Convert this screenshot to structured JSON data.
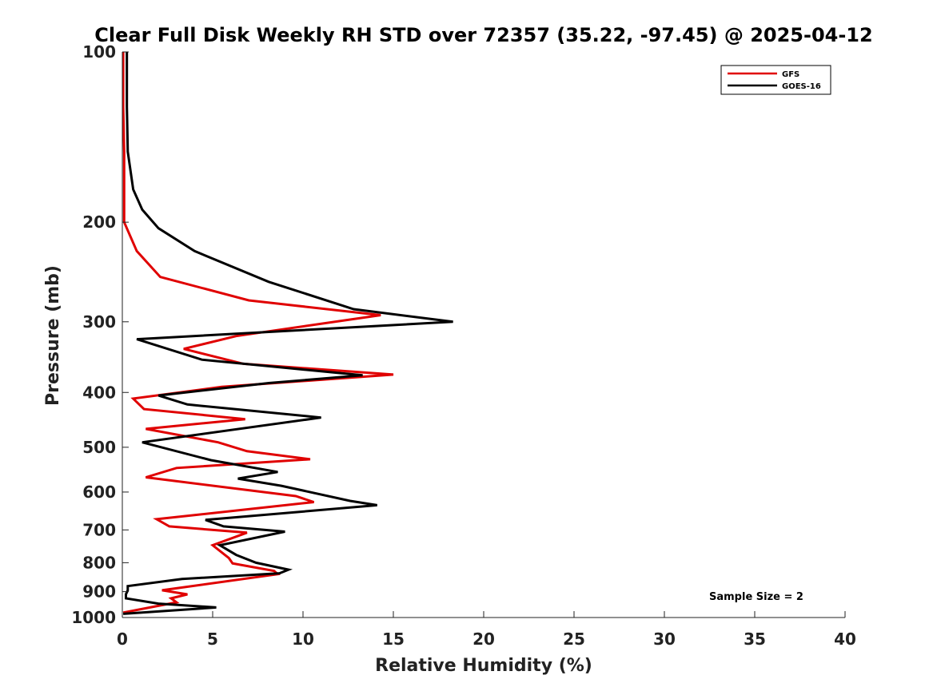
{
  "chart_data": {
    "type": "line",
    "title": "Clear Full Disk Weekly RH STD over 72357 (35.22, -97.45) @ 2025-04-12",
    "xlabel": "Relative Humidity (%)",
    "ylabel": "Pressure (mb)",
    "xlim": [
      0,
      40
    ],
    "ylim": [
      100,
      1000
    ],
    "yscale": "log",
    "yreversed": true,
    "xticks": [
      0,
      5,
      10,
      15,
      20,
      25,
      30,
      35,
      40
    ],
    "yticks": [
      100,
      200,
      300,
      400,
      500,
      600,
      700,
      800,
      900,
      1000
    ],
    "grid": false,
    "legend_position": "top-right",
    "annotation": "Sample Size = 2",
    "series": [
      {
        "name": "GFS",
        "color": "#e00000",
        "points": [
          [
            0.05,
            100
          ],
          [
            0.05,
            125
          ],
          [
            0.1,
            150
          ],
          [
            0.1,
            175
          ],
          [
            0.1,
            200
          ],
          [
            0.8,
            225
          ],
          [
            2.1,
            250
          ],
          [
            7.0,
            275
          ],
          [
            14.3,
            292
          ],
          [
            6.3,
            318
          ],
          [
            3.4,
            335
          ],
          [
            6.7,
            356
          ],
          [
            15.0,
            372
          ],
          [
            5.5,
            391
          ],
          [
            0.6,
            410
          ],
          [
            1.2,
            428
          ],
          [
            6.8,
            446
          ],
          [
            1.3,
            464
          ],
          [
            5.3,
            490
          ],
          [
            6.9,
            508
          ],
          [
            10.4,
            525
          ],
          [
            3.0,
            544
          ],
          [
            1.3,
            565
          ],
          [
            9.6,
            610
          ],
          [
            10.6,
            625
          ],
          [
            1.9,
            670
          ],
          [
            2.6,
            690
          ],
          [
            6.9,
            708
          ],
          [
            5.0,
            745
          ],
          [
            5.9,
            785
          ],
          [
            6.1,
            802
          ],
          [
            8.4,
            827
          ],
          [
            8.6,
            838
          ],
          [
            2.2,
            895
          ],
          [
            3.6,
            910
          ],
          [
            2.7,
            925
          ],
          [
            3.0,
            940
          ],
          [
            0.05,
            980
          ]
        ]
      },
      {
        "name": "GOES-16",
        "color": "#000000",
        "points": [
          [
            0.25,
            100
          ],
          [
            0.25,
            125
          ],
          [
            0.3,
            150
          ],
          [
            0.6,
            175
          ],
          [
            1.1,
            190
          ],
          [
            2.0,
            205
          ],
          [
            4.0,
            225
          ],
          [
            8.1,
            255
          ],
          [
            12.8,
            285
          ],
          [
            18.3,
            300
          ],
          [
            0.8,
            322
          ],
          [
            4.4,
            350
          ],
          [
            13.3,
            373
          ],
          [
            8.1,
            385
          ],
          [
            2.0,
            405
          ],
          [
            3.6,
            420
          ],
          [
            11.0,
            443
          ],
          [
            1.1,
            490
          ],
          [
            4.9,
            527
          ],
          [
            8.6,
            553
          ],
          [
            6.4,
            568
          ],
          [
            8.8,
            585
          ],
          [
            12.6,
            622
          ],
          [
            14.1,
            633
          ],
          [
            4.6,
            672
          ],
          [
            5.6,
            690
          ],
          [
            9.0,
            705
          ],
          [
            5.4,
            745
          ],
          [
            6.3,
            775
          ],
          [
            7.4,
            800
          ],
          [
            9.2,
            823
          ],
          [
            8.7,
            835
          ],
          [
            3.3,
            855
          ],
          [
            0.3,
            880
          ],
          [
            0.3,
            895
          ],
          [
            0.2,
            910
          ],
          [
            0.2,
            925
          ],
          [
            2.0,
            945
          ],
          [
            5.2,
            960
          ],
          [
            0.05,
            985
          ]
        ]
      }
    ]
  }
}
